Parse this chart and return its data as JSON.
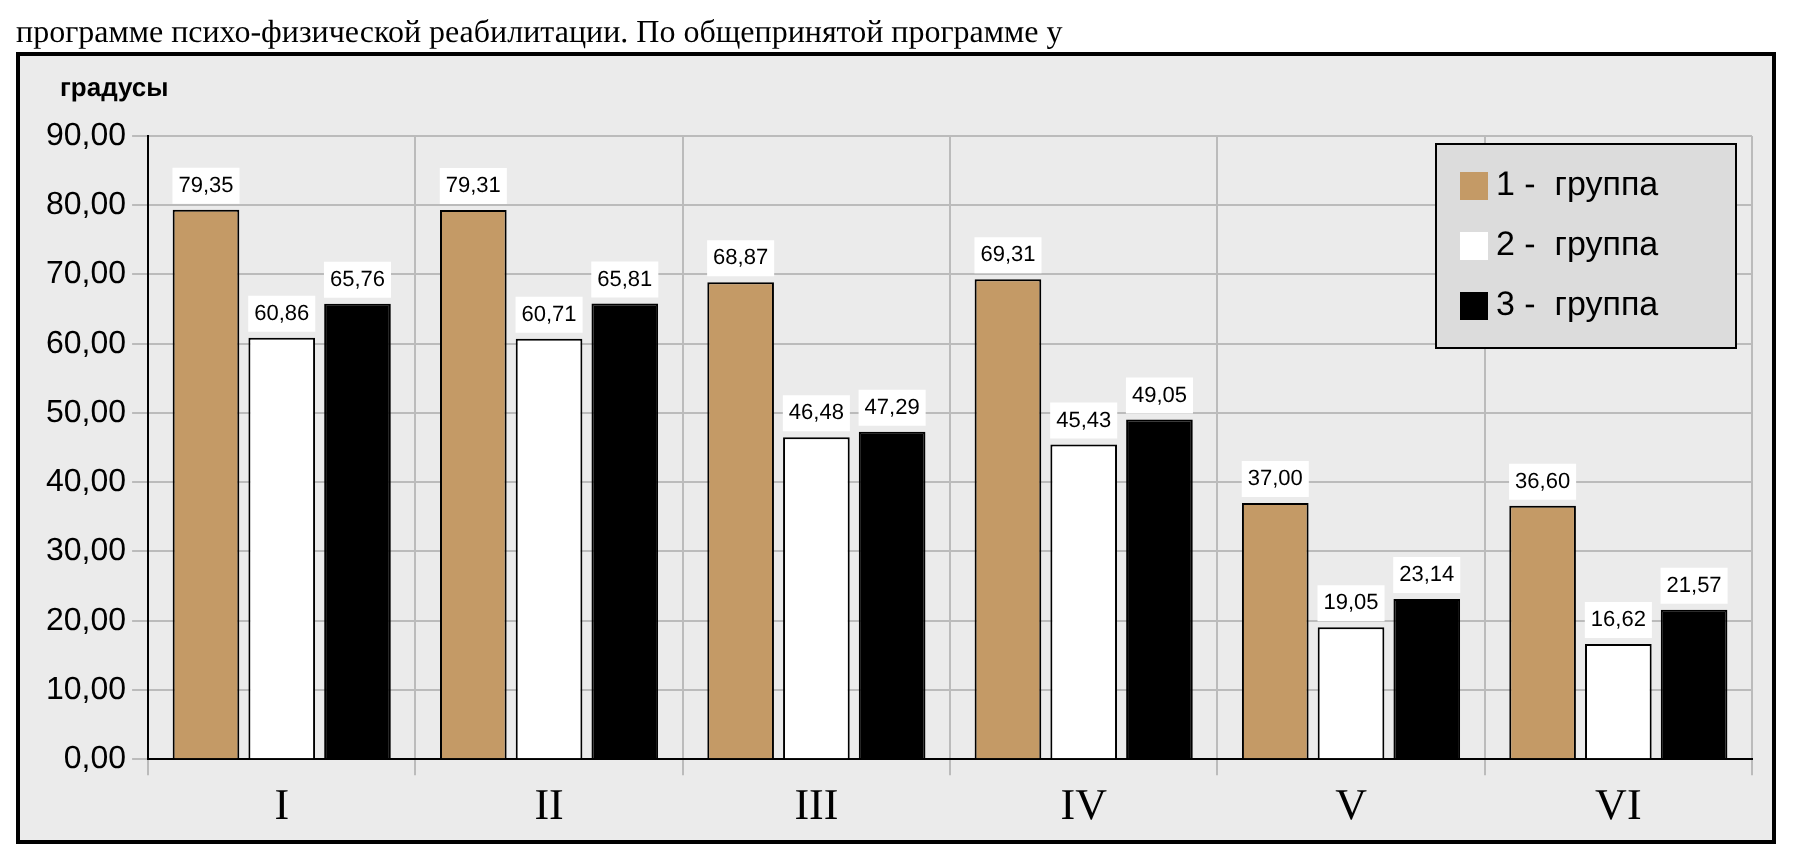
{
  "chart_data": {
    "type": "bar",
    "annotations": [
      "программе психо-физической реабилитации. По общепринятой программе у"
    ],
    "ylabel": "градусы",
    "categories": [
      "I",
      "II",
      "III",
      "IV",
      "V",
      "VI"
    ],
    "series": [
      {
        "name": "1 -  группа",
        "color": "#c49a66",
        "values": [
          79.35,
          79.31,
          68.87,
          69.31,
          37.0,
          36.6
        ],
        "value_labels": [
          "79,35",
          "79,31",
          "68,87",
          "69,31",
          "37,00",
          "36,60"
        ]
      },
      {
        "name": "2 -  группа",
        "color": "#ffffff",
        "values": [
          60.86,
          60.71,
          46.48,
          45.43,
          19.05,
          16.62
        ],
        "value_labels": [
          "60,86",
          "60,71",
          "46,48",
          "45,43",
          "19,05",
          "16,62"
        ]
      },
      {
        "name": "3 -  группа",
        "color": "#000000",
        "values": [
          65.76,
          65.81,
          47.29,
          49.05,
          23.14,
          21.57
        ],
        "value_labels": [
          "65,76",
          "65,81",
          "47,29",
          "49,05",
          "23,14",
          "21,57"
        ]
      }
    ],
    "ylim": [
      0,
      90
    ],
    "yticks": [
      {
        "value": 0,
        "label": "0,00"
      },
      {
        "value": 10,
        "label": "10,00"
      },
      {
        "value": 20,
        "label": "20,00"
      },
      {
        "value": 30,
        "label": "30,00"
      },
      {
        "value": 40,
        "label": "40,00"
      },
      {
        "value": 50,
        "label": "50,00"
      },
      {
        "value": 60,
        "label": "60,00"
      },
      {
        "value": 70,
        "label": "70,00"
      },
      {
        "value": 80,
        "label": "80,00"
      },
      {
        "value": 90,
        "label": "90,00"
      }
    ],
    "grid": true,
    "legend": "top right"
  }
}
